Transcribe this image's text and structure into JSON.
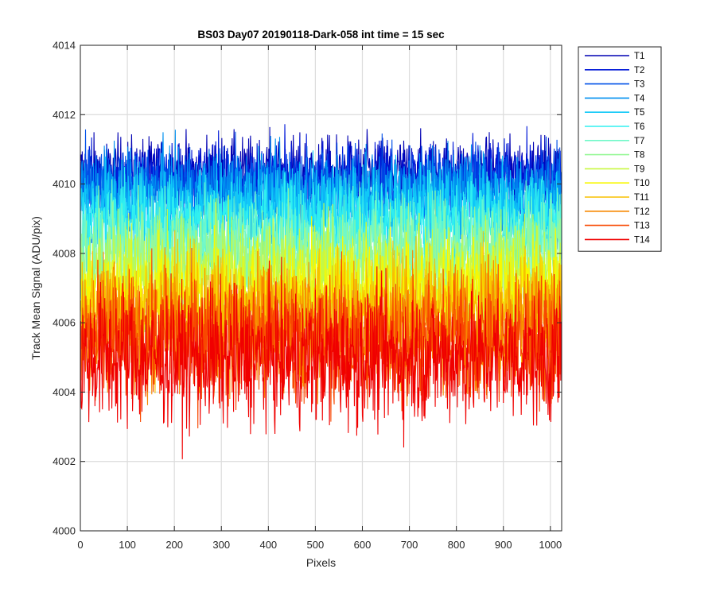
{
  "chart_data": {
    "type": "line",
    "title": "BS03 Day07 20190118-Dark-058 int time = 15 sec",
    "xlabel": "Pixels",
    "ylabel": "Track Mean Signal (ADU/pix)",
    "xlim": [
      0,
      1024
    ],
    "ylim": [
      4000,
      4014
    ],
    "xticks": [
      0,
      100,
      200,
      300,
      400,
      500,
      600,
      700,
      800,
      900,
      1000
    ],
    "yticks": [
      4000,
      4002,
      4004,
      4006,
      4008,
      4010,
      4012,
      4014
    ],
    "grid": true,
    "legend_position": "outside-top-right",
    "n_pixels": 1024,
    "series": [
      {
        "name": "T1",
        "color": "#0000b3",
        "mean": 4010.3,
        "spread": 0.75
      },
      {
        "name": "T2",
        "color": "#0018d8",
        "mean": 4010.1,
        "spread": 0.8
      },
      {
        "name": "T3",
        "color": "#0050e8",
        "mean": 4009.9,
        "spread": 0.85
      },
      {
        "name": "T4",
        "color": "#0090f0",
        "mean": 4009.7,
        "spread": 0.9
      },
      {
        "name": "T5",
        "color": "#10c8f8",
        "mean": 4009.3,
        "spread": 0.95
      },
      {
        "name": "T6",
        "color": "#30f0f0",
        "mean": 4008.8,
        "spread": 1.0
      },
      {
        "name": "T7",
        "color": "#70f8c8",
        "mean": 4008.3,
        "spread": 1.05
      },
      {
        "name": "T8",
        "color": "#98f898",
        "mean": 4007.8,
        "spread": 1.1
      },
      {
        "name": "T9",
        "color": "#c8f840",
        "mean": 4007.3,
        "spread": 1.15
      },
      {
        "name": "T10",
        "color": "#f8f800",
        "mean": 4006.8,
        "spread": 1.2
      },
      {
        "name": "T11",
        "color": "#f8c000",
        "mean": 4006.3,
        "spread": 1.25
      },
      {
        "name": "T12",
        "color": "#f88800",
        "mean": 4005.9,
        "spread": 1.3
      },
      {
        "name": "T13",
        "color": "#f84800",
        "mean": 4005.5,
        "spread": 1.35
      },
      {
        "name": "T14",
        "color": "#f00000",
        "mean": 4005.0,
        "spread": 1.4
      }
    ]
  }
}
